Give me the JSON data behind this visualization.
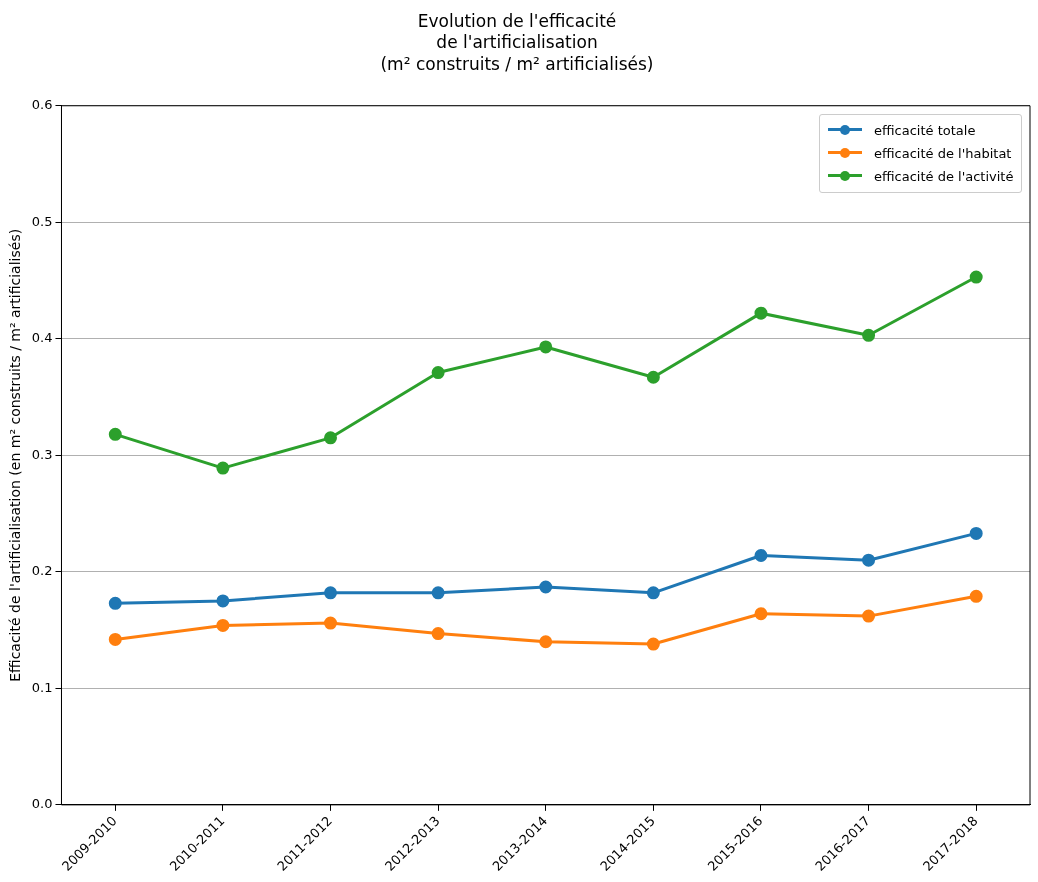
{
  "chart_data": {
    "type": "line",
    "title": "Evolution de l'efficacité\nde l'artificialisation\n(m² construits / m² artificialisés)",
    "ylabel": "Efficacité de l'artificialisation (en m² construits / m² artificialisés)",
    "categories": [
      "2009-2010",
      "2010-2011",
      "2011-2012",
      "2012-2013",
      "2013-2014",
      "2014-2015",
      "2015-2016",
      "2016-2017",
      "2017-2018"
    ],
    "series": [
      {
        "name": "efficacité totale",
        "color": "#1f77b4",
        "values": [
          0.173,
          0.175,
          0.182,
          0.182,
          0.187,
          0.182,
          0.214,
          0.21,
          0.233
        ]
      },
      {
        "name": "efficacité de l'habitat",
        "color": "#ff7f0e",
        "values": [
          0.142,
          0.154,
          0.156,
          0.147,
          0.14,
          0.138,
          0.164,
          0.162,
          0.179
        ]
      },
      {
        "name": "efficacité de l'activité",
        "color": "#2ca02c",
        "values": [
          0.318,
          0.289,
          0.315,
          0.371,
          0.393,
          0.367,
          0.422,
          0.403,
          0.453
        ]
      }
    ],
    "ylim": [
      0,
      0.6
    ],
    "yticks": [
      {
        "value": 0,
        "label": "0.0"
      },
      0.1,
      0.2,
      0.3,
      0.4,
      0.5,
      0.6
    ],
    "grid": "y",
    "legend": "top right",
    "marker": "circle",
    "line_style": "solid"
  }
}
